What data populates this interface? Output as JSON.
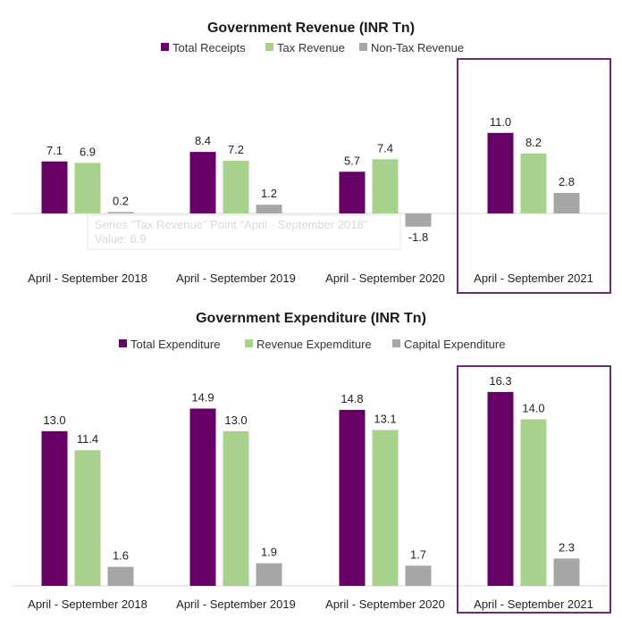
{
  "colors": {
    "total": "#660066",
    "revenue": "#a9d18e",
    "other": "#a6a6a6",
    "highlight": "#6b2c75",
    "axis": "#d9d9d9"
  },
  "chart_data": [
    {
      "type": "bar",
      "title": "Government Revenue (INR Tn)",
      "categories": [
        "April - September 2018",
        "April - September 2019",
        "April - September 2020",
        "April - September 2021"
      ],
      "series": [
        {
          "name": "Total Receipts",
          "values": [
            7.1,
            8.4,
            5.7,
            11.0
          ],
          "labels": [
            "7.1",
            "8.4",
            "5.7",
            "11.0"
          ]
        },
        {
          "name": "Tax Revenue",
          "values": [
            6.9,
            7.2,
            7.4,
            8.2
          ],
          "labels": [
            "6.9",
            "7.2",
            "7.4",
            "8.2"
          ]
        },
        {
          "name": "Non-Tax Revenue",
          "values": [
            0.2,
            1.2,
            -1.8,
            2.8
          ],
          "labels": [
            "0.2",
            "1.2",
            "-1.8",
            "2.8"
          ]
        }
      ],
      "highlighted_category": "April - September 2021",
      "legend_position": "top",
      "tooltip": {
        "line1": "Series \"Tax Revenue\" Point \"April - September 2018\"",
        "line2": "Value: 6.9"
      }
    },
    {
      "type": "bar",
      "title": "Government Expenditure (INR Tn)",
      "categories": [
        "April - September 2018",
        "April - September 2019",
        "April - September 2020",
        "April - September 2021"
      ],
      "series": [
        {
          "name": "Total Expenditure",
          "values": [
            13.0,
            14.9,
            14.8,
            16.3
          ],
          "labels": [
            "13.0",
            "14.9",
            "14.8",
            "16.3"
          ]
        },
        {
          "name": "Revenue Expemditure",
          "values": [
            11.4,
            13.0,
            13.1,
            14.0
          ],
          "labels": [
            "11.4",
            "13.0",
            "13.1",
            "14.0"
          ]
        },
        {
          "name": "Capital Expenditure",
          "values": [
            1.6,
            1.9,
            1.7,
            2.3
          ],
          "labels": [
            "1.6",
            "1.9",
            "1.7",
            "2.3"
          ]
        }
      ],
      "highlighted_category": "April - September 2021",
      "legend_position": "top"
    }
  ]
}
